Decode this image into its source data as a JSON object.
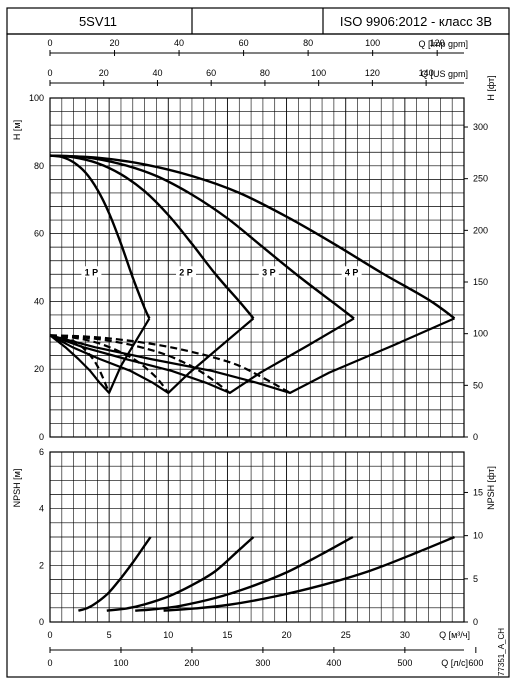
{
  "header": {
    "model": "5SV11",
    "middle": "",
    "standard": "ISO 9906:2012 - класс 3B"
  },
  "footer_code": "77351_A_CH",
  "chart_data": [
    {
      "type": "line",
      "name": "head",
      "ylabel": "H [м]",
      "ylabel_right": "H [фт]",
      "ylim": [
        0,
        100
      ],
      "yticks": [
        0,
        20,
        40,
        60,
        80,
        100
      ],
      "ylim_right": [
        0,
        328.084
      ],
      "yticks_right": [
        0,
        50,
        100,
        150,
        200,
        250,
        300
      ],
      "xlim": [
        0,
        35
      ],
      "top_axes": [
        {
          "label": "Q [Imp gpm]",
          "ticks": [
            0,
            20,
            40,
            60,
            80,
            100,
            120
          ],
          "m3h_per_unit": 0.272765
        },
        {
          "label": "Q [US gpm]",
          "ticks": [
            0,
            20,
            40,
            60,
            80,
            100,
            120,
            140
          ],
          "m3h_per_unit": 0.227125
        }
      ],
      "series": [
        {
          "name": "1 P",
          "x": [
            0,
            1,
            2,
            3,
            4,
            5,
            6,
            7,
            8,
            8.4
          ],
          "y": [
            83,
            82.6,
            81,
            78,
            73,
            66,
            57,
            47,
            38,
            35
          ]
        },
        {
          "name": "2 P",
          "x": [
            0,
            2,
            4,
            6,
            8,
            10,
            12,
            14,
            16,
            17.2
          ],
          "y": [
            83,
            82.5,
            80.8,
            77.5,
            72.5,
            65.5,
            57,
            48,
            40,
            35
          ]
        },
        {
          "name": "3 P",
          "x": [
            0,
            3,
            6,
            9,
            12,
            15,
            18,
            21,
            24,
            25.7
          ],
          "y": [
            83,
            82.5,
            80.5,
            77,
            71.5,
            64.5,
            56,
            47.5,
            39.5,
            35
          ]
        },
        {
          "name": "4 P",
          "x": [
            0,
            4,
            8,
            12,
            16,
            20,
            24,
            28,
            32,
            34.2
          ],
          "y": [
            83,
            82.4,
            80.4,
            77,
            72,
            65,
            57,
            48.5,
            40.5,
            35
          ]
        },
        {
          "name": "",
          "style": "boundary",
          "x": [
            8.4,
            7.2,
            6.0,
            5.0,
            4.2,
            3.4,
            2.4,
            1.3,
            0
          ],
          "y": [
            35,
            28,
            21,
            13,
            16,
            19.5,
            23,
            26.5,
            30
          ]
        },
        {
          "name": "",
          "style": "boundary",
          "x": [
            17.2,
            14.5,
            11.8,
            10.0,
            8.7,
            6.8,
            4.2,
            1.9,
            0
          ],
          "y": [
            35,
            27,
            19,
            13,
            16,
            19.5,
            23,
            26.5,
            30
          ]
        },
        {
          "name": "",
          "style": "boundary",
          "x": [
            25.7,
            21.8,
            17.8,
            15.2,
            13.2,
            10.3,
            6.4,
            2.8,
            0
          ],
          "y": [
            35,
            27,
            19,
            13,
            16,
            19.5,
            23,
            26.5,
            30
          ]
        },
        {
          "name": "",
          "style": "boundary",
          "x": [
            34.2,
            29.0,
            23.6,
            20.3,
            17.5,
            13.7,
            8.5,
            3.8,
            0
          ],
          "y": [
            35,
            27,
            19,
            13,
            16,
            19.5,
            23,
            26.5,
            30
          ]
        },
        {
          "name": "",
          "style": "dashed",
          "x": [
            0,
            2,
            4,
            6,
            8,
            10,
            12,
            14,
            16,
            18,
            20.3
          ],
          "y": [
            30,
            29.8,
            29.4,
            28.7,
            27.8,
            26.6,
            25.1,
            23.3,
            21,
            17.5,
            13
          ]
        },
        {
          "name": "",
          "style": "dashed",
          "x": [
            0,
            2,
            4,
            6,
            8,
            10,
            12,
            13.5,
            15.2
          ],
          "y": [
            30,
            29.6,
            28.9,
            27.8,
            26.2,
            24,
            20.8,
            17.5,
            13
          ]
        },
        {
          "name": "",
          "style": "dashed",
          "x": [
            0,
            2,
            4,
            6,
            7.5,
            9,
            10
          ],
          "y": [
            30,
            29.3,
            27.8,
            25,
            22,
            17.5,
            13
          ]
        },
        {
          "name": "",
          "style": "dashed",
          "x": [
            0,
            1,
            2,
            3,
            4,
            5
          ],
          "y": [
            30,
            29.5,
            28.3,
            25.6,
            21,
            13
          ]
        }
      ],
      "labels": [
        {
          "text": "1 P",
          "x": 3.5,
          "y": 48
        },
        {
          "text": "2 P",
          "x": 11.5,
          "y": 48
        },
        {
          "text": "3 P",
          "x": 18.5,
          "y": 48
        },
        {
          "text": "4 P",
          "x": 25.5,
          "y": 48
        }
      ]
    },
    {
      "type": "line",
      "name": "npsh",
      "ylabel": "NPSH [м]",
      "ylabel_right": "NPSH [фт]",
      "ylim": [
        0,
        6
      ],
      "yticks": [
        0,
        2,
        4,
        6
      ],
      "ylim_right": [
        0,
        19.685
      ],
      "yticks_right": [
        0,
        5,
        10,
        15
      ],
      "xlim": [
        0,
        35
      ],
      "xlabel": "Q [м³/ч]",
      "xticks": [
        0,
        5,
        10,
        15,
        20,
        25,
        30
      ],
      "bottom_axis": {
        "label": "Q [л/с]",
        "ticks": [
          0,
          100,
          200,
          300,
          400,
          500,
          600
        ],
        "m3h_per_unit": 0.06
      },
      "series": [
        {
          "name": "",
          "x": [
            2.4,
            3.2,
            4,
            5,
            6,
            7,
            8,
            8.5
          ],
          "y": [
            0.4,
            0.5,
            0.7,
            1.05,
            1.55,
            2.1,
            2.7,
            3
          ]
        },
        {
          "name": "",
          "x": [
            4.8,
            6.5,
            8,
            10,
            12,
            14,
            16,
            17.2
          ],
          "y": [
            0.4,
            0.48,
            0.62,
            0.9,
            1.3,
            1.8,
            2.55,
            3
          ]
        },
        {
          "name": "",
          "x": [
            7.2,
            9,
            11,
            14,
            17,
            20,
            23,
            25.6
          ],
          "y": [
            0.4,
            0.46,
            0.57,
            0.85,
            1.25,
            1.75,
            2.4,
            3
          ]
        },
        {
          "name": "",
          "x": [
            9.6,
            12,
            15,
            19,
            23,
            27,
            31,
            34.2
          ],
          "y": [
            0.4,
            0.47,
            0.6,
            0.9,
            1.3,
            1.8,
            2.45,
            3
          ]
        }
      ]
    }
  ]
}
